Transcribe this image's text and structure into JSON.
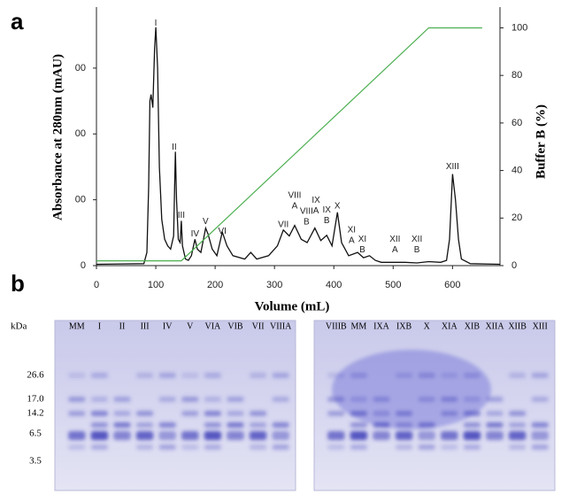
{
  "chart_data": {
    "type": "line",
    "panel_label": "a",
    "xlabel": "Volume (mL)",
    "ylabel": "Absorbance  at 280nm (mAU)",
    "y2label": "Buffer B (%)",
    "xlim": [
      0,
      680
    ],
    "xticks": [
      0,
      100,
      200,
      300,
      400,
      500,
      600
    ],
    "ylim": [
      0,
      390
    ],
    "yticks": [
      0,
      {
        "value": 100,
        "label": "00"
      },
      {
        "value": 200,
        "label": "00"
      },
      {
        "value": 300,
        "label": "00"
      }
    ],
    "y2lim": [
      0,
      108
    ],
    "y2ticks": [
      0,
      20,
      40,
      60,
      80,
      100
    ],
    "series": [
      {
        "color": "#111111",
        "x": [
          0,
          80,
          85,
          88,
          90,
          92,
          95,
          98,
          100,
          103,
          106,
          110,
          115,
          120,
          125,
          130,
          132,
          133,
          135,
          138,
          141,
          143,
          145,
          150,
          155,
          160,
          166,
          170,
          176,
          184,
          188,
          195,
          203,
          212,
          220,
          230,
          250,
          260,
          270,
          290,
          305,
          315,
          325,
          334,
          345,
          355,
          368,
          378,
          388,
          397,
          406,
          413,
          425,
          440,
          450,
          460,
          470,
          480,
          500,
          520,
          540,
          560,
          580,
          590,
          595,
          600,
          605,
          610,
          615,
          630,
          680
        ],
        "values": [
          2,
          3,
          20,
          120,
          250,
          260,
          240,
          330,
          362,
          300,
          150,
          70,
          40,
          30,
          25,
          45,
          130,
          173,
          100,
          40,
          35,
          68,
          30,
          10,
          8,
          15,
          40,
          25,
          20,
          57,
          48,
          25,
          15,
          51,
          30,
          15,
          10,
          20,
          10,
          15,
          30,
          54,
          45,
          61,
          40,
          35,
          57,
          38,
          46,
          30,
          81,
          35,
          15,
          20,
          12,
          15,
          8,
          5,
          5,
          5,
          4,
          6,
          5,
          8,
          40,
          139,
          100,
          40,
          10,
          3,
          2
        ]
      },
      {
        "color": "#4caf50",
        "axis": "y2",
        "x": [
          0,
          143,
          560,
          650
        ],
        "values": [
          2,
          2,
          100,
          100
        ]
      }
    ],
    "annotations": [
      {
        "lines": [
          "I"
        ],
        "x": 100,
        "y": 368
      },
      {
        "lines": [
          "II"
        ],
        "x": 131,
        "y": 180
      },
      {
        "lines": [
          "III"
        ],
        "x": 143,
        "y": 76
      },
      {
        "lines": [
          "IV"
        ],
        "x": 166,
        "y": 48
      },
      {
        "lines": [
          "V"
        ],
        "x": 184,
        "y": 67
      },
      {
        "lines": [
          "VI"
        ],
        "x": 212,
        "y": 52
      },
      {
        "lines": [
          "VII"
        ],
        "x": 315,
        "y": 62
      },
      {
        "lines": [
          "VIII",
          "A"
        ],
        "x": 334,
        "y": 90
      },
      {
        "lines": [
          "VIII",
          "B"
        ],
        "x": 354,
        "y": 66
      },
      {
        "lines": [
          "IX",
          "A"
        ],
        "x": 370,
        "y": 83
      },
      {
        "lines": [
          "IX",
          "B"
        ],
        "x": 388,
        "y": 68
      },
      {
        "lines": [
          "X"
        ],
        "x": 406,
        "y": 90
      },
      {
        "lines": [
          "XI",
          "A"
        ],
        "x": 430,
        "y": 38
      },
      {
        "lines": [
          "XI",
          "B"
        ],
        "x": 448,
        "y": 24
      },
      {
        "lines": [
          "XII",
          "A"
        ],
        "x": 503,
        "y": 24
      },
      {
        "lines": [
          "XII",
          "B"
        ],
        "x": 540,
        "y": 24
      },
      {
        "lines": [
          "XIII"
        ],
        "x": 600,
        "y": 150
      }
    ]
  },
  "panel_b": {
    "label": "b",
    "kda_label": "kDa",
    "markers": [
      "26.6",
      "17.0",
      "14.2",
      "6.5",
      "3.5"
    ],
    "gels": [
      {
        "lanes": [
          "MM",
          "I",
          "II",
          "III",
          "IV",
          "V",
          "VIA",
          "VIB",
          "VII",
          "VIIIA"
        ]
      },
      {
        "lanes": [
          "VIIIB",
          "MM",
          "IXA",
          "IXB",
          "X",
          "XIA",
          "XIB",
          "XIIA",
          "XIIB",
          "XIII"
        ]
      }
    ]
  }
}
